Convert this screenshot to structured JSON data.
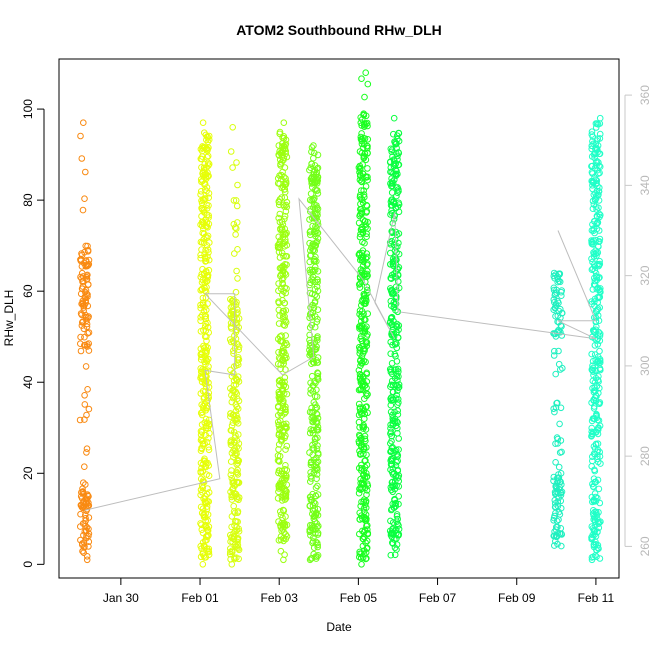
{
  "chart_data": {
    "type": "scatter",
    "title": "ATOM2 Southbound RHw_DLH",
    "xlabel": "Date",
    "ylabel": "RHw_DLH",
    "x_ticks": [
      "Jan 30",
      "Feb 01",
      "Feb 03",
      "Feb 05",
      "Feb 07",
      "Feb 09",
      "Feb 11"
    ],
    "x_tick_dates": [
      "2016-01-30",
      "2016-02-01",
      "2016-02-03",
      "2016-02-05",
      "2016-02-07",
      "2016-02-09",
      "2016-02-11"
    ],
    "xlim": [
      "2016-01-28 10:30",
      "2016-02-11 14:00"
    ],
    "ylim": [
      -3,
      111
    ],
    "y_ticks": [
      0,
      20,
      40,
      60,
      80,
      100
    ],
    "y2_ticks": [
      260,
      280,
      300,
      320,
      340,
      360
    ],
    "y2lim": [
      253,
      368
    ],
    "grid": false,
    "marker": "open-circle",
    "color_by": "time (orange to cyan)",
    "series": [
      {
        "x": "2016-01-29 02:00",
        "color": "#f98a12",
        "min": 1,
        "max": 97,
        "dense_ranges": [
          [
            1,
            18
          ],
          [
            48,
            70
          ]
        ]
      },
      {
        "x": "2016-02-01 03:00",
        "color": "#e6ff08",
        "min": 0,
        "max": 97,
        "dense_ranges": [
          [
            1,
            95
          ]
        ]
      },
      {
        "x": "2016-02-01 21:00",
        "color": "#d8ff10",
        "min": 0,
        "max": 96,
        "dense_ranges": [
          [
            1,
            60
          ]
        ]
      },
      {
        "x": "2016-02-03 02:00",
        "color": "#9cff10",
        "min": 1,
        "max": 97,
        "dense_ranges": [
          [
            5,
            95
          ]
        ]
      },
      {
        "x": "2016-02-03 21:00",
        "color": "#73ff18",
        "min": 1,
        "max": 92,
        "dense_ranges": [
          [
            1,
            88
          ]
        ]
      },
      {
        "x": "2016-02-05 03:00",
        "color": "#1bff20",
        "min": 0,
        "max": 108,
        "dense_ranges": [
          [
            1,
            99
          ]
        ]
      },
      {
        "x": "2016-02-05 22:00",
        "color": "#0aff40",
        "min": 2,
        "max": 98,
        "dense_ranges": [
          [
            2,
            95
          ]
        ]
      },
      {
        "x": "2016-02-10 01:00",
        "color": "#20f0c0",
        "min": 4,
        "max": 64,
        "dense_ranges": [
          [
            4,
            20
          ],
          [
            50,
            64
          ]
        ]
      },
      {
        "x": "2016-02-11 00:00",
        "color": "#20ffc8",
        "min": 1,
        "max": 98,
        "dense_ranges": [
          [
            1,
            97
          ]
        ]
      }
    ],
    "track_y2": [
      {
        "x": "2016-01-29 02:00",
        "y": 268
      },
      {
        "x": "2016-02-01 12:00",
        "y": 275
      },
      {
        "x": "2016-02-01 03:00",
        "y": 299
      },
      {
        "x": "2016-02-01 21:00",
        "y": 298
      },
      {
        "x": "2016-02-01 21:00",
        "y": 316
      },
      {
        "x": "2016-02-01 03:00",
        "y": 316
      },
      {
        "x": "2016-02-03 02:00",
        "y": 298
      },
      {
        "x": "2016-02-03 21:00",
        "y": 302
      },
      {
        "x": "2016-02-03 12:00",
        "y": 337
      },
      {
        "x": "2016-02-05 03:00",
        "y": 319
      },
      {
        "x": "2016-02-05 22:00",
        "y": 306
      },
      {
        "x": "2016-02-05 10:00",
        "y": 314
      },
      {
        "x": "2016-02-05 22:00",
        "y": 334
      },
      {
        "x": "2016-02-06 00:00",
        "y": 312
      },
      {
        "x": "2016-02-11 00:00",
        "y": 306
      },
      {
        "x": "2016-02-10 01:00",
        "y": 310
      },
      {
        "x": "2016-02-11 00:00",
        "y": 310
      },
      {
        "x": "2016-02-10 01:00",
        "y": 330
      }
    ]
  }
}
